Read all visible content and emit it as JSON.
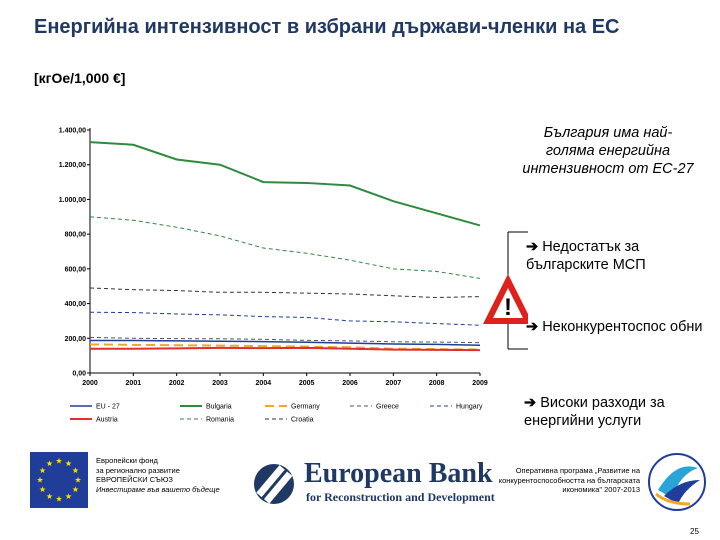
{
  "header": {
    "title": "Енергийна интензивност в избрани държави-членки на ЕС",
    "subtitle": "[кгОе/1,000 €]"
  },
  "chart_data": {
    "type": "line",
    "title": "",
    "xlabel": "",
    "ylabel": "",
    "x": [
      "2000",
      "2001",
      "2002",
      "2003",
      "2004",
      "2005",
      "2006",
      "2007",
      "2008",
      "2009"
    ],
    "y_ticks": [
      "0,00",
      "200,00",
      "400,00",
      "600,00",
      "800,00",
      "1.000,00",
      "1.200,00",
      "1.400,00"
    ],
    "ylim": [
      0,
      1400
    ],
    "grid": false,
    "legend_position": "bottom",
    "series": [
      {
        "name": "EU - 27",
        "color": "#1f3d99",
        "style": "solid",
        "width": 1.5,
        "values": [
          187,
          187,
          185,
          183,
          181,
          177,
          172,
          167,
          165,
          160
        ]
      },
      {
        "name": "Bulgaria",
        "color": "#2e8b3e",
        "style": "solid",
        "width": 2,
        "values": [
          1330,
          1315,
          1230,
          1200,
          1100,
          1095,
          1080,
          990,
          920,
          850
        ]
      },
      {
        "name": "Germany",
        "color": "#f5a623",
        "style": "dash",
        "width": 2,
        "values": [
          165,
          162,
          160,
          158,
          155,
          152,
          148,
          140,
          138,
          135
        ]
      },
      {
        "name": "Greece",
        "color": "#555555",
        "style": "dash",
        "width": 1,
        "values": [
          205,
          200,
          198,
          197,
          194,
          188,
          185,
          180,
          178,
          175
        ]
      },
      {
        "name": "Hungary",
        "color": "#1f3d99",
        "style": "dash",
        "width": 1,
        "values": [
          350,
          348,
          340,
          335,
          325,
          320,
          300,
          295,
          285,
          275
        ]
      },
      {
        "name": "Austria",
        "color": "#e03030",
        "style": "solid",
        "width": 2,
        "values": [
          140,
          140,
          142,
          145,
          143,
          145,
          140,
          135,
          133,
          132
        ]
      },
      {
        "name": "Romania",
        "color": "#2e8b3e",
        "style": "dash",
        "width": 1,
        "values": [
          900,
          880,
          840,
          790,
          720,
          690,
          650,
          600,
          585,
          545
        ]
      },
      {
        "name": "Croatia",
        "color": "#333333",
        "style": "dash",
        "width": 1,
        "values": [
          490,
          480,
          475,
          465,
          465,
          460,
          455,
          445,
          435,
          440
        ]
      }
    ]
  },
  "sidebar": {
    "main": "България има най-голяма енергийна интензивност от ЕС-27",
    "arrow": "➔",
    "points": [
      "Недостатък за българските МСП",
      "Неконкурентоспос обни",
      "Високи разходи за енергийни услуги"
    ],
    "warning_symbol": "!"
  },
  "footer": {
    "fund_line1": "Европейски фонд",
    "fund_line2": "за регионално развитие",
    "fund_line3": "ЕВРОПЕЙСКИ СЪЮЗ",
    "slogan": "Инвестираме във вашето бъдеще",
    "bank_name": "European Bank",
    "bank_sub": "for Reconstruction and Development",
    "program": "Оперативна програма „Развитие на конкурентоспособността на българската икономика\" 2007-2013",
    "page_number": "25"
  },
  "colors": {
    "title": "#1f3864",
    "eu_blue": "#1f3d99",
    "eu_star": "#ffdd00",
    "warning": "#e0201b"
  }
}
